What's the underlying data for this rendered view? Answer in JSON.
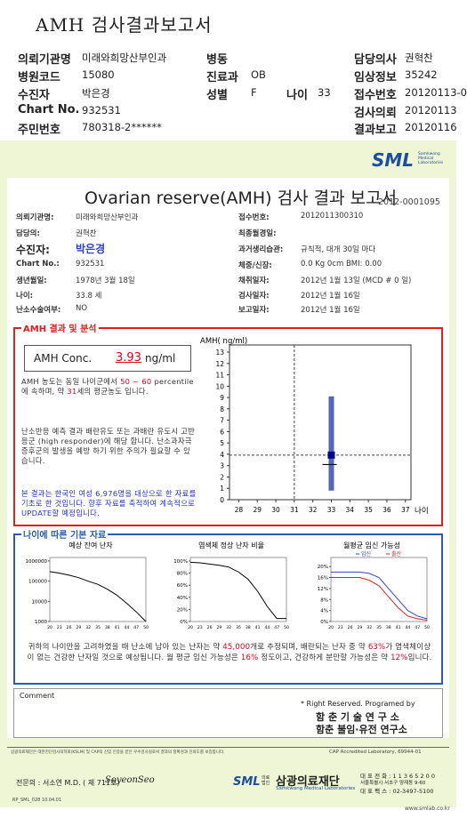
{
  "header": {
    "title": "AMH 검사결과보고서",
    "fields": [
      {
        "label": "의뢰기관명",
        "value": "미래와희망산부인과"
      },
      {
        "label": "병동"
      },
      {
        "label": "담당의사",
        "value": "권혁찬"
      },
      {
        "label": "병원코드",
        "value": "15080"
      },
      {
        "label": "진료과",
        "value": "OB"
      },
      {
        "label": "임상정보",
        "value": "35242"
      },
      {
        "label": "수진자",
        "value": "박은경"
      },
      {
        "label": "성별",
        "value": "F"
      },
      {
        "label": "나이",
        "value": "33"
      },
      {
        "label": "접수번호",
        "value": "20120113-0"
      },
      {
        "label": "Chart No.",
        "value": "932531"
      },
      {
        "label": "검사의뢰",
        "value": "20120113"
      },
      {
        "label": "주민번호",
        "value": "780318-2******"
      },
      {
        "label": "결과보고",
        "value": "20120116"
      }
    ]
  },
  "report": {
    "logo": "SML",
    "logo_sub": "Samkwang Medical Laboratories",
    "title": "Ovarian reserve(AMH) 검사 결과 보고서",
    "report_no": "2012-0001095",
    "info": [
      {
        "label": "의뢰기관명:",
        "value": "미래와희망산부인과"
      },
      {
        "label": "접수번호:",
        "value": "2012011300310"
      },
      {
        "label": "담당의:",
        "value": "권혁찬"
      },
      {
        "label": "최종월경일:"
      },
      {
        "label": "수진자:",
        "value": "박은경"
      },
      {
        "label": "과거생리습관:",
        "value": "규칙적, 대개  30일 마다"
      },
      {
        "label": "Chart No.:",
        "value": "932531"
      },
      {
        "label": "체중/신장:",
        "value": "0.0 Kg      0cm    BMI:  0.00"
      },
      {
        "label": "생년월일:",
        "value": "1978년 3월 18일"
      },
      {
        "label": "채취일자:",
        "value": "2012년 1월 13일   (MCD # 0 일)"
      },
      {
        "label": "나이:",
        "value": "33.8 세"
      },
      {
        "label": "검사일자:",
        "value": "2012년 1월 16일"
      },
      {
        "label": "난소수술여부:",
        "value": "NO"
      },
      {
        "label": "보고일자:",
        "value": "2012년 1월 16일"
      }
    ]
  },
  "analysis": {
    "title": "AMH 결과 및 분석",
    "conc_label": "AMH Conc.",
    "conc_value": "3.93",
    "conc_unit": "ng/ml",
    "paragraphs": [
      {
        "color": "#333333",
        "segments": [
          {
            "text": "AMH 농도는 동일 나이군에서 "
          },
          {
            "text": "50 ~ 60",
            "color": "#e0001a"
          },
          {
            "text": " percentile에 속하며, 약 "
          },
          {
            "text": "31",
            "color": "#e0001a"
          },
          {
            "text": "세의 평균농도 입니다."
          }
        ]
      },
      {
        "color": "#333333",
        "segments": [
          {
            "text": "난소반응 예측 결과 배란유도 또는 과배란 유도시 고반응군 (high responder)에 해당 합니다. 난소과자극 증후군의 발생을 예방 하기 위한 주의가 필요할 수 있습니다."
          }
        ]
      },
      {
        "color": "#2233cc",
        "segments": [
          {
            "text": "본 결과는 한국인 여성 6,976명을 대상으로 한 자료를 기초로 한 것입니다. 향후 자료를 축적하여 계속적으로 UPDATE할 예정입니다."
          }
        ]
      }
    ],
    "chart": {
      "ylabel": "AMH( ng/ml)",
      "xlabel": "나이",
      "ylim": [
        0,
        13
      ],
      "yticks": [
        0,
        1,
        2,
        3,
        4,
        5,
        6,
        7,
        8,
        9,
        10,
        11,
        12,
        13
      ],
      "xlim": [
        27.5,
        37.3
      ],
      "xticks": [
        28,
        29,
        30,
        31,
        32,
        33,
        34,
        35,
        36,
        37
      ],
      "reference_age": 31,
      "range": {
        "x": 33,
        "low": 0.8,
        "high": 9.1,
        "mean": 3.1,
        "color": "#5566bb"
      },
      "point": {
        "x": 33,
        "y": 3.93,
        "color": "#000088"
      }
    }
  },
  "basics": {
    "title": "나이에 따른 기본 자료",
    "charts": [
      {
        "title": "예상 잔여 난자",
        "log": true,
        "ylim": [
          1000,
          1000000
        ],
        "yticks": [
          1000000,
          100000,
          10000,
          1000
        ],
        "xlim": [
          20,
          50
        ],
        "x": [
          20,
          23,
          26,
          29,
          32,
          35,
          38,
          41,
          44,
          47,
          50
        ],
        "series": [
          {
            "color": "#000000",
            "values": [
              300000,
              250000,
              200000,
              150000,
              100000,
              70000,
              40000,
              20000,
              8000,
              3000,
              1000
            ]
          }
        ]
      },
      {
        "title": "염색체 정상 난자 비율",
        "log": false,
        "ylim": [
          0,
          100
        ],
        "yticks": [
          {
            "value": 100,
            "label": "100%"
          },
          {
            "value": 80,
            "label": "80%"
          },
          {
            "value": 60,
            "label": "60%"
          },
          {
            "value": 40,
            "label": "40%"
          },
          {
            "value": 20,
            "label": "20%"
          },
          {
            "value": 0,
            "label": "0%"
          }
        ],
        "xlim": [
          20,
          50
        ],
        "x": [
          20,
          23,
          26,
          29,
          32,
          35,
          38,
          41,
          44,
          47,
          50
        ],
        "series": [
          {
            "color": "#000000",
            "values": [
              98,
              97,
              95,
              93,
              90,
              82,
              70,
              50,
              25,
              5,
              5
            ]
          }
        ]
      },
      {
        "title": "월평균 임신 가능성",
        "log": false,
        "ylim": [
          0,
          22
        ],
        "yticks": [
          {
            "value": 20,
            "label": "20%"
          },
          {
            "value": 16,
            "label": "16%"
          },
          {
            "value": 12,
            "label": "12%"
          },
          {
            "value": 8,
            "label": "8%"
          },
          {
            "value": 4,
            "label": "4%"
          },
          {
            "value": 0,
            "label": "0%"
          }
        ],
        "xlim": [
          20,
          50
        ],
        "x": [
          20,
          23,
          26,
          29,
          32,
          35,
          38,
          41,
          44,
          47,
          50
        ],
        "series": [
          {
            "name": "임신",
            "color": "#3344cc",
            "values": [
              18,
              18,
              18,
              18,
              17.5,
              16,
              12,
              8,
              4,
              2,
              1
            ]
          },
          {
            "name": "출산",
            "color": "#dd2222",
            "values": [
              16,
              16,
              16,
              16,
              15,
              13,
              9,
              5,
              2,
              1,
              0.5
            ]
          }
        ]
      }
    ],
    "summary": [
      {
        "text": "귀하의 나이만을 고려하였을 때 난소에 남아 있는 난자는 약 "
      },
      {
        "text": "45,000",
        "color": "#e0001a"
      },
      {
        "text": "개로 추정되며, 배란되는 난자 중 약 "
      },
      {
        "text": "63%",
        "color": "#e0001a"
      },
      {
        "text": "가 염색체이상이 없는 건강한 난자일 것으로 예상됩니다. 월 평균 임신 가능성은 "
      },
      {
        "text": "16%",
        "color": "#e0001a"
      },
      {
        "text": " 정도이고, 건강하게 분만할 가능성은 약 "
      },
      {
        "text": "12%",
        "color": "#e0001a"
      },
      {
        "text": "입니다."
      }
    ]
  },
  "comment": {
    "label": "Comment",
    "rights": "* Right Reserved. Programed by",
    "org1": "함 춘  기 술  연 구 소",
    "org2": "함춘 불임·유전 연구소"
  },
  "footer": {
    "notice": "삼광의료재단은 대한진단검사의학회(KSLM) 및 CAP의 신임 인증을 받은 우수검사실로서 결과의 정확성과 신뢰도를 보증합니다.",
    "cap": "CAP  Accredited  Laboratory,  69944-01",
    "doctor": "전문의 : 서소연 M.D. ( 제 711호)",
    "signature": "SoyeonSeo",
    "logo": "SML",
    "org_type": "의료법인",
    "org_name": "삼광의료재단",
    "org_en": "Samkwang Medical Laboratories",
    "phone": "대 표 전 화 : 1 1 3 6 5 2 0 0",
    "address": "서울특별시 서초구 양재동 9-60",
    "fax": "대 표 팩 스 : 02-3497-5100",
    "form_code": "RP_SML_028  10.04.01",
    "website": "www.smlab.co.kr"
  }
}
